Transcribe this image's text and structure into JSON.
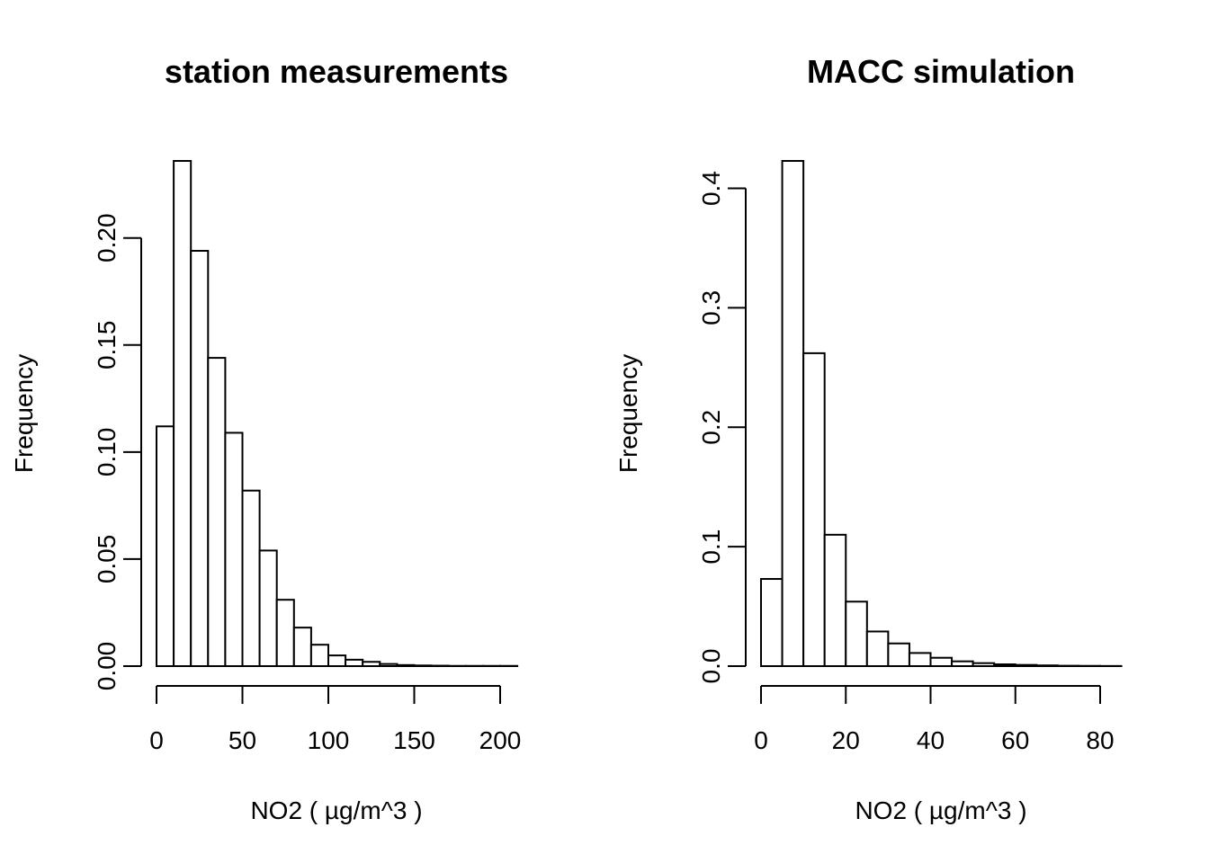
{
  "chart_data": [
    {
      "type": "bar",
      "subtype": "histogram",
      "title": "station measurements",
      "xlabel": "NO2 ( µg/m^3 )",
      "ylabel": "Frequency",
      "bin_width": 10,
      "bin_edges": [
        0,
        10,
        20,
        30,
        40,
        50,
        60,
        70,
        80,
        90,
        100,
        110,
        120,
        130,
        140,
        150,
        160,
        170,
        180,
        190,
        200,
        210
      ],
      "values": [
        0.112,
        0.236,
        0.194,
        0.144,
        0.109,
        0.082,
        0.054,
        0.031,
        0.018,
        0.01,
        0.005,
        0.003,
        0.002,
        0.001,
        0.0005,
        0.0003,
        0.0002,
        0.0001,
        0.0001,
        0.0001,
        0.0001
      ],
      "xlim": [
        0,
        210
      ],
      "ylim": [
        0,
        0.236
      ],
      "x_ticks": [
        "0",
        "50",
        "100",
        "150",
        "200"
      ],
      "y_ticks": [
        "0.00",
        "0.05",
        "0.10",
        "0.15",
        "0.20"
      ],
      "grid": false,
      "legend": "none"
    },
    {
      "type": "bar",
      "subtype": "histogram",
      "title": "MACC simulation",
      "xlabel": "NO2 ( µg/m^3 )",
      "ylabel": "Frequency",
      "bin_width": 5,
      "bin_edges": [
        0,
        5,
        10,
        15,
        20,
        25,
        30,
        35,
        40,
        45,
        50,
        55,
        60,
        65,
        70,
        75,
        80,
        85
      ],
      "values": [
        0.073,
        0.423,
        0.262,
        0.11,
        0.054,
        0.029,
        0.019,
        0.011,
        0.007,
        0.004,
        0.0025,
        0.0015,
        0.001,
        0.0006,
        0.0003,
        0.0002,
        0.0001
      ],
      "xlim": [
        0,
        85
      ],
      "ylim": [
        0,
        0.423
      ],
      "x_ticks": [
        "0",
        "20",
        "40",
        "60",
        "80"
      ],
      "y_ticks": [
        "0.0",
        "0.1",
        "0.2",
        "0.3",
        "0.4"
      ],
      "grid": false,
      "legend": "none"
    }
  ]
}
